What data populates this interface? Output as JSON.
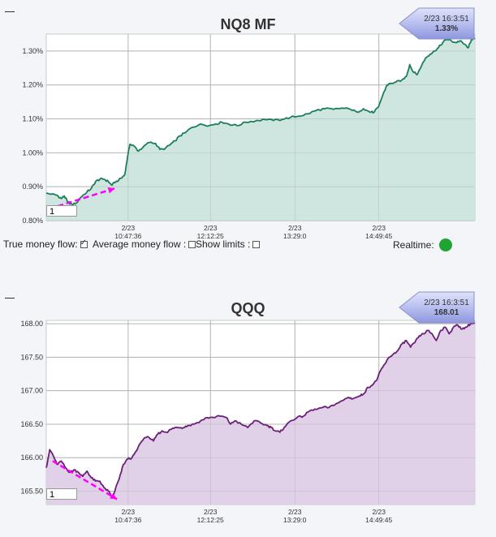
{
  "checkbox_states": {
    "true_money_flow": true,
    "average_money_flow": false,
    "show_limits": false
  },
  "realtime_status_color": "#1fa534",
  "chart_data": [
    {
      "type": "area",
      "title": "NQ8 MF",
      "badge": {
        "time": "2/23 16:3:51",
        "value": "1.33%"
      },
      "input_value": "1",
      "ylim": [
        0.8,
        1.35
      ],
      "yticks": [
        0.8,
        0.9,
        1.0,
        1.1,
        1.2,
        1.3
      ],
      "ytick_labels": [
        "0.80%",
        "0.90%",
        "1.00%",
        "1.10%",
        "1.20%",
        "1.30%"
      ],
      "xticks": [
        {
          "date": "2/23",
          "time": "10:47:36"
        },
        {
          "date": "2/23",
          "time": "12:12:25"
        },
        {
          "date": "2/23",
          "time": "13:29:0"
        },
        {
          "date": "2/23",
          "time": "14:49:45"
        }
      ],
      "xtick_positions": [
        0.191,
        0.383,
        0.58,
        0.776
      ],
      "line_color": "#1a7f5a",
      "fill_color": "#cfe5df",
      "grid": true,
      "keypoints": [
        [
          0.0,
          0.88
        ],
        [
          0.012,
          0.878
        ],
        [
          0.025,
          0.875
        ],
        [
          0.035,
          0.865
        ],
        [
          0.042,
          0.873
        ],
        [
          0.05,
          0.855
        ],
        [
          0.06,
          0.848
        ],
        [
          0.07,
          0.852
        ],
        [
          0.08,
          0.868
        ],
        [
          0.095,
          0.885
        ],
        [
          0.105,
          0.895
        ],
        [
          0.115,
          0.915
        ],
        [
          0.125,
          0.922
        ],
        [
          0.135,
          0.922
        ],
        [
          0.145,
          0.915
        ],
        [
          0.152,
          0.905
        ],
        [
          0.16,
          0.912
        ],
        [
          0.175,
          0.925
        ],
        [
          0.183,
          0.935
        ],
        [
          0.19,
          0.99
        ],
        [
          0.195,
          1.025
        ],
        [
          0.205,
          1.02
        ],
        [
          0.215,
          1.005
        ],
        [
          0.228,
          1.02
        ],
        [
          0.24,
          1.03
        ],
        [
          0.255,
          1.028
        ],
        [
          0.265,
          1.01
        ],
        [
          0.275,
          1.01
        ],
        [
          0.29,
          1.025
        ],
        [
          0.3,
          1.035
        ],
        [
          0.312,
          1.05
        ],
        [
          0.325,
          1.06
        ],
        [
          0.34,
          1.075
        ],
        [
          0.36,
          1.085
        ],
        [
          0.38,
          1.08
        ],
        [
          0.395,
          1.085
        ],
        [
          0.41,
          1.09
        ],
        [
          0.425,
          1.085
        ],
        [
          0.445,
          1.08
        ],
        [
          0.465,
          1.09
        ],
        [
          0.49,
          1.095
        ],
        [
          0.51,
          1.098
        ],
        [
          0.53,
          1.095
        ],
        [
          0.55,
          1.098
        ],
        [
          0.57,
          1.105
        ],
        [
          0.59,
          1.108
        ],
        [
          0.61,
          1.115
        ],
        [
          0.63,
          1.125
        ],
        [
          0.65,
          1.13
        ],
        [
          0.67,
          1.128
        ],
        [
          0.69,
          1.132
        ],
        [
          0.71,
          1.128
        ],
        [
          0.725,
          1.12
        ],
        [
          0.74,
          1.13
        ],
        [
          0.755,
          1.12
        ],
        [
          0.765,
          1.12
        ],
        [
          0.775,
          1.135
        ],
        [
          0.785,
          1.17
        ],
        [
          0.795,
          1.2
        ],
        [
          0.805,
          1.205
        ],
        [
          0.815,
          1.208
        ],
        [
          0.83,
          1.215
        ],
        [
          0.84,
          1.225
        ],
        [
          0.848,
          1.26
        ],
        [
          0.855,
          1.24
        ],
        [
          0.865,
          1.23
        ],
        [
          0.875,
          1.255
        ],
        [
          0.885,
          1.28
        ],
        [
          0.895,
          1.29
        ],
        [
          0.905,
          1.3
        ],
        [
          0.915,
          1.31
        ],
        [
          0.925,
          1.325
        ],
        [
          0.935,
          1.335
        ],
        [
          0.945,
          1.33
        ],
        [
          0.955,
          1.325
        ],
        [
          0.965,
          1.33
        ],
        [
          0.975,
          1.32
        ],
        [
          0.985,
          1.31
        ],
        [
          0.992,
          1.335
        ],
        [
          1.0,
          1.335
        ]
      ],
      "annotation_arrow": {
        "from": [
          0.007,
          0.835
        ],
        "to": [
          0.16,
          0.895
        ],
        "color": "#ff00ff"
      }
    },
    {
      "type": "area",
      "title": "QQQ",
      "badge": {
        "time": "2/23 16:3:51",
        "value": "168.01"
      },
      "input_value": "1",
      "ylim": [
        165.3,
        168.05
      ],
      "yticks": [
        165.5,
        166.0,
        166.5,
        167.0,
        167.5,
        168.0
      ],
      "ytick_labels": [
        "165.50",
        "166.00",
        "166.50",
        "167.00",
        "167.50",
        "168.00"
      ],
      "xticks": [
        {
          "date": "2/23",
          "time": "10:47:36"
        },
        {
          "date": "2/23",
          "time": "12:12:25"
        },
        {
          "date": "2/23",
          "time": "13:29:0"
        },
        {
          "date": "2/23",
          "time": "14:49:45"
        }
      ],
      "xtick_positions": [
        0.191,
        0.383,
        0.58,
        0.776
      ],
      "line_color": "#6b1f79",
      "fill_color": "#e1d1e8",
      "grid": true,
      "keypoints": [
        [
          0.0,
          165.85
        ],
        [
          0.008,
          166.12
        ],
        [
          0.015,
          166.05
        ],
        [
          0.025,
          165.9
        ],
        [
          0.035,
          165.95
        ],
        [
          0.045,
          165.85
        ],
        [
          0.055,
          165.78
        ],
        [
          0.065,
          165.82
        ],
        [
          0.075,
          165.78
        ],
        [
          0.085,
          165.72
        ],
        [
          0.095,
          165.8
        ],
        [
          0.105,
          165.7
        ],
        [
          0.115,
          165.65
        ],
        [
          0.125,
          165.65
        ],
        [
          0.135,
          165.55
        ],
        [
          0.145,
          165.5
        ],
        [
          0.155,
          165.4
        ],
        [
          0.162,
          165.55
        ],
        [
          0.17,
          165.68
        ],
        [
          0.18,
          165.9
        ],
        [
          0.19,
          165.98
        ],
        [
          0.2,
          166.0
        ],
        [
          0.21,
          166.1
        ],
        [
          0.22,
          166.22
        ],
        [
          0.23,
          166.3
        ],
        [
          0.24,
          166.3
        ],
        [
          0.25,
          166.25
        ],
        [
          0.26,
          166.35
        ],
        [
          0.27,
          166.4
        ],
        [
          0.28,
          166.38
        ],
        [
          0.29,
          166.42
        ],
        [
          0.3,
          166.45
        ],
        [
          0.31,
          166.45
        ],
        [
          0.32,
          166.45
        ],
        [
          0.33,
          166.48
        ],
        [
          0.345,
          166.5
        ],
        [
          0.36,
          166.55
        ],
        [
          0.375,
          166.6
        ],
        [
          0.39,
          166.6
        ],
        [
          0.405,
          166.62
        ],
        [
          0.42,
          166.6
        ],
        [
          0.43,
          166.5
        ],
        [
          0.44,
          166.55
        ],
        [
          0.455,
          166.5
        ],
        [
          0.47,
          166.45
        ],
        [
          0.485,
          166.55
        ],
        [
          0.5,
          166.52
        ],
        [
          0.515,
          166.48
        ],
        [
          0.525,
          166.45
        ],
        [
          0.535,
          166.4
        ],
        [
          0.545,
          166.38
        ],
        [
          0.555,
          166.45
        ],
        [
          0.57,
          166.55
        ],
        [
          0.585,
          166.6
        ],
        [
          0.6,
          166.62
        ],
        [
          0.615,
          166.7
        ],
        [
          0.63,
          166.72
        ],
        [
          0.645,
          166.75
        ],
        [
          0.66,
          166.75
        ],
        [
          0.675,
          166.8
        ],
        [
          0.69,
          166.85
        ],
        [
          0.705,
          166.9
        ],
        [
          0.715,
          166.88
        ],
        [
          0.73,
          166.92
        ],
        [
          0.74,
          166.95
        ],
        [
          0.75,
          167.05
        ],
        [
          0.76,
          167.08
        ],
        [
          0.77,
          167.15
        ],
        [
          0.78,
          167.3
        ],
        [
          0.79,
          167.4
        ],
        [
          0.8,
          167.5
        ],
        [
          0.81,
          167.55
        ],
        [
          0.82,
          167.6
        ],
        [
          0.83,
          167.7
        ],
        [
          0.84,
          167.75
        ],
        [
          0.85,
          167.65
        ],
        [
          0.86,
          167.72
        ],
        [
          0.87,
          167.82
        ],
        [
          0.88,
          167.85
        ],
        [
          0.89,
          167.9
        ],
        [
          0.9,
          167.85
        ],
        [
          0.91,
          167.75
        ],
        [
          0.92,
          167.9
        ],
        [
          0.93,
          167.95
        ],
        [
          0.94,
          167.85
        ],
        [
          0.95,
          167.95
        ],
        [
          0.96,
          167.98
        ],
        [
          0.97,
          167.92
        ],
        [
          0.98,
          167.95
        ],
        [
          0.99,
          168.0
        ],
        [
          1.0,
          168.01
        ]
      ],
      "annotation_arrow": {
        "from": [
          0.015,
          165.95
        ],
        "to": [
          0.165,
          165.38
        ],
        "color": "#ff00ff"
      }
    }
  ],
  "controls": {
    "true_money_flow_label": "True money flow:",
    "average_money_flow_label": "Average money flow :",
    "show_limits_label": "Show limits :",
    "realtime_label": "Realtime:"
  }
}
